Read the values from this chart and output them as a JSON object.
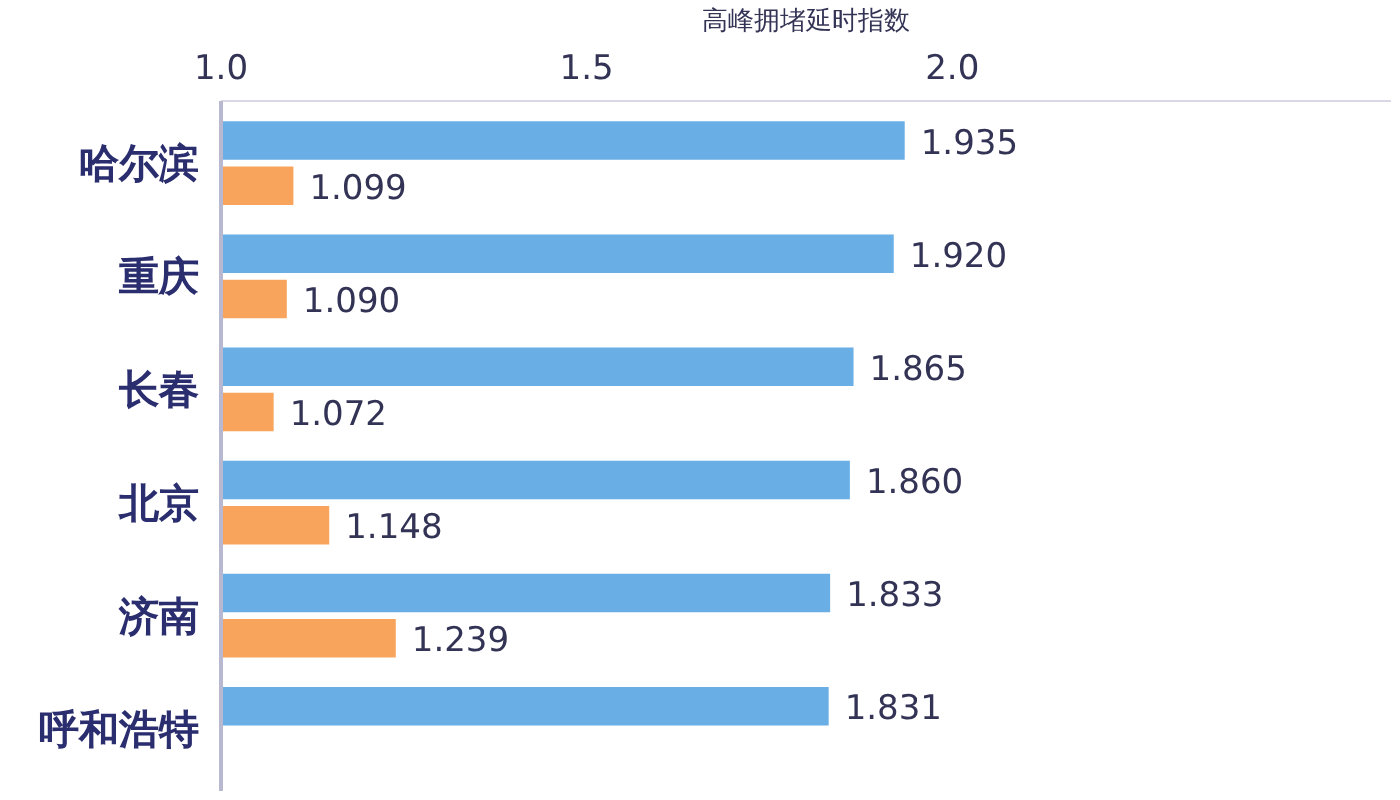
{
  "chart_data": {
    "type": "bar",
    "orientation": "horizontal",
    "xlabel": "高峰拥堵延时指数",
    "categories": [
      "哈尔滨",
      "重庆",
      "长春",
      "北京",
      "济南",
      "呼和浩特"
    ],
    "series": [
      {
        "color": "#6aaee6",
        "values": [
          1.935,
          1.92,
          1.865,
          1.86,
          1.833,
          1.831
        ],
        "value_labels": [
          "1.935",
          "1.920",
          "1.865",
          "1.860",
          "1.833",
          "1.831"
        ]
      },
      {
        "color": "#f9a45c",
        "values": [
          1.099,
          1.09,
          1.072,
          1.148,
          1.239,
          null
        ],
        "value_labels": [
          "1.099",
          "1.090",
          "1.072",
          "1.148",
          "1.239",
          null
        ]
      }
    ],
    "xlim": [
      1.0,
      2.6
    ],
    "xticks": [
      {
        "value": 1.0,
        "label": "1.0"
      },
      {
        "value": 1.5,
        "label": "1.5"
      },
      {
        "value": 2.0,
        "label": "2.0"
      }
    ],
    "grid": false
  }
}
